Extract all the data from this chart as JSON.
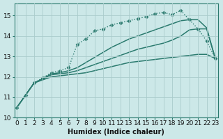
{
  "xlabel": "Humidex (Indice chaleur)",
  "background_color": "#cce8e8",
  "line_color": "#2a7a6e",
  "grid_color": "#aacccc",
  "xlim": [
    -0.3,
    23.3
  ],
  "ylim": [
    10,
    15.6
  ],
  "yticks": [
    10,
    11,
    12,
    13,
    14,
    15
  ],
  "xticks": [
    0,
    1,
    2,
    3,
    4,
    5,
    6,
    7,
    8,
    9,
    10,
    11,
    12,
    13,
    14,
    15,
    16,
    17,
    18,
    19,
    20,
    21,
    22,
    23
  ],
  "font_size": 7,
  "tick_fontsize": 6.5,
  "series": [
    {
      "x": [
        0,
        1,
        2,
        3,
        4,
        5,
        6,
        7,
        8,
        9,
        10,
        11,
        12,
        13,
        14,
        15,
        16,
        17,
        18,
        19,
        20,
        21,
        22,
        23
      ],
      "y": [
        10.5,
        11.1,
        11.7,
        11.85,
        12.0,
        12.05,
        12.1,
        12.15,
        12.2,
        12.3,
        12.4,
        12.5,
        12.6,
        12.7,
        12.75,
        12.8,
        12.85,
        12.9,
        12.95,
        13.0,
        13.05,
        13.1,
        13.1,
        12.9
      ],
      "marker": null,
      "linestyle": "-",
      "linewidth": 1.1
    },
    {
      "x": [
        0,
        1,
        2,
        3,
        4,
        5,
        6,
        7,
        8,
        9,
        10,
        11,
        12,
        13,
        14,
        15,
        16,
        17,
        18,
        19,
        20,
        21,
        22,
        23
      ],
      "y": [
        10.5,
        11.1,
        11.7,
        11.9,
        12.1,
        12.15,
        12.2,
        12.3,
        12.45,
        12.6,
        12.75,
        12.9,
        13.05,
        13.2,
        13.35,
        13.45,
        13.55,
        13.65,
        13.8,
        14.0,
        14.3,
        14.35,
        14.35,
        12.9
      ],
      "marker": null,
      "linestyle": "-",
      "linewidth": 1.1
    },
    {
      "x": [
        0,
        1,
        2,
        3,
        4,
        5,
        6,
        7,
        8,
        9,
        10,
        11,
        12,
        13,
        14,
        15,
        16,
        17,
        18,
        19,
        20,
        21,
        22,
        23
      ],
      "y": [
        10.5,
        11.1,
        11.7,
        11.9,
        12.15,
        12.2,
        12.3,
        12.45,
        12.7,
        12.95,
        13.2,
        13.45,
        13.65,
        13.85,
        14.0,
        14.15,
        14.3,
        14.45,
        14.6,
        14.75,
        14.8,
        14.8,
        14.4,
        12.9
      ],
      "marker": null,
      "linestyle": "-",
      "linewidth": 1.1
    },
    {
      "x": [
        0,
        1,
        2,
        3,
        4,
        5,
        6,
        7,
        8,
        9,
        10,
        11,
        12,
        13,
        14,
        15,
        16,
        17,
        18,
        19,
        20,
        21,
        22,
        23
      ],
      "y": [
        10.5,
        11.1,
        11.7,
        11.95,
        12.2,
        12.3,
        12.45,
        13.6,
        13.85,
        14.25,
        14.35,
        14.55,
        14.65,
        14.75,
        14.85,
        14.95,
        15.1,
        15.15,
        15.05,
        15.25,
        14.8,
        14.35,
        13.75,
        12.9
      ],
      "marker": "D",
      "markersize": 2.5,
      "linestyle": ":",
      "linewidth": 1.0
    }
  ]
}
